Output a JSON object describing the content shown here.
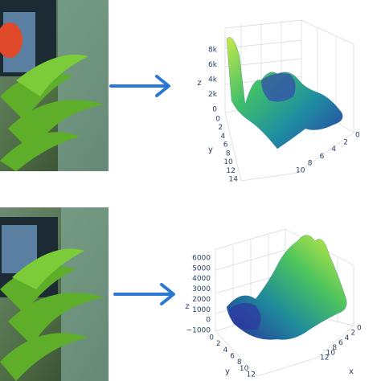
{
  "top_plot": {
    "z_axis": {
      "label": "z",
      "ticks": [
        "8k",
        "6k",
        "4k",
        "2k",
        "0"
      ]
    },
    "y_axis": {
      "label": "y",
      "ticks": [
        "0",
        "2",
        "4",
        "6",
        "8",
        "10",
        "12",
        "14"
      ]
    },
    "x_axis": {
      "ticks": [
        "10",
        "8",
        "6",
        "4",
        "2",
        "0"
      ]
    }
  },
  "bottom_plot": {
    "z_axis": {
      "label": "z",
      "ticks": [
        "6000",
        "5000",
        "4000",
        "3000",
        "2000",
        "1000",
        "0",
        "−1000"
      ]
    },
    "y_axis": {
      "label": "y",
      "ticks": [
        "0",
        "2",
        "4",
        "6",
        "8",
        "10",
        "12"
      ]
    },
    "x_axis": {
      "label": "x",
      "ticks": [
        "12",
        "10",
        "8",
        "6",
        "4",
        "2",
        "0"
      ]
    }
  }
}
